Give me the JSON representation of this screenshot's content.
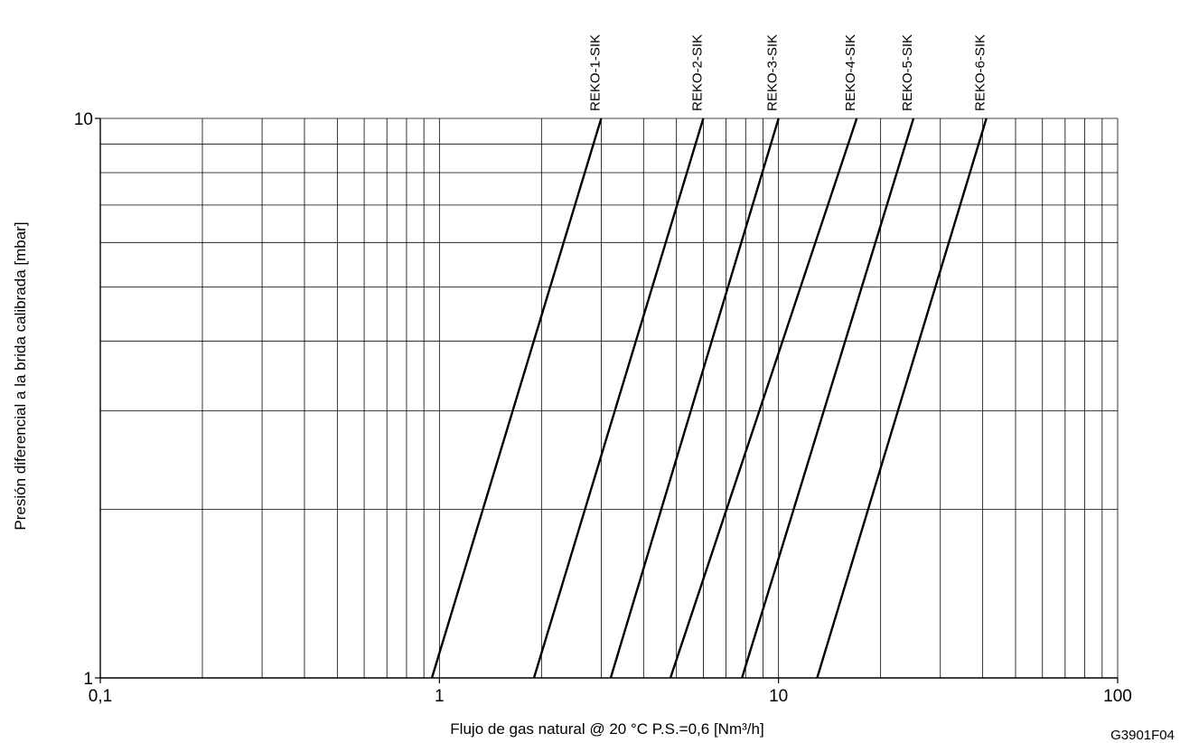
{
  "chart_data": {
    "type": "line",
    "xscale": "log",
    "yscale": "log",
    "xlim": [
      0.1,
      100
    ],
    "ylim": [
      1,
      10
    ],
    "grid": true,
    "xlabel": "Flujo de gas natural @ 20 °C P.S.=0,6 [Nm³/h]",
    "ylabel": "Presión diferencial a la brida calibrada [mbar]",
    "code": "G3901F04",
    "xticks": [
      {
        "value": 0.1,
        "label": "0,1"
      },
      {
        "value": 1,
        "label": "1"
      },
      {
        "value": 10,
        "label": "10"
      },
      {
        "value": 100,
        "label": "100"
      }
    ],
    "yticks": [
      {
        "value": 1,
        "label": "1"
      },
      {
        "value": 10,
        "label": "10"
      }
    ],
    "series": [
      {
        "name": "REKO-1-SIK",
        "x": [
          0.95,
          3.0
        ],
        "y": [
          1,
          10
        ]
      },
      {
        "name": "REKO-2-SIK",
        "x": [
          1.9,
          6.0
        ],
        "y": [
          1,
          10
        ]
      },
      {
        "name": "REKO-3-SIK",
        "x": [
          3.2,
          10.0
        ],
        "y": [
          1,
          10
        ]
      },
      {
        "name": "REKO-4-SIK",
        "x": [
          4.8,
          17.0
        ],
        "y": [
          1,
          10
        ]
      },
      {
        "name": "REKO-5-SIK",
        "x": [
          7.8,
          25.0
        ],
        "y": [
          1,
          10
        ]
      },
      {
        "name": "REKO-6-SIK",
        "x": [
          13.0,
          41.0
        ],
        "y": [
          1,
          10
        ]
      }
    ]
  }
}
